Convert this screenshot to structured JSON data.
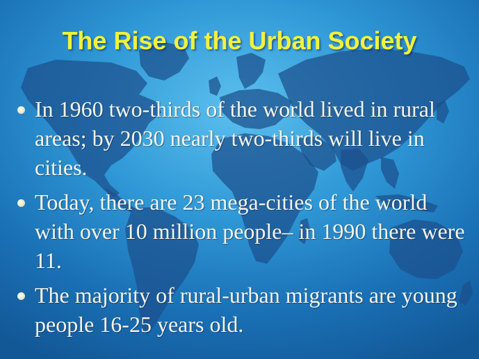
{
  "slide": {
    "title": "The Rise of the Urban Society",
    "background_map_icon": "world-map",
    "colors": {
      "title": "#f2f23a",
      "body_text": "#f5f5ea",
      "background": "#2f98d6",
      "map": "#1c4f8c"
    },
    "bullets": [
      {
        "text": "In 1960 two-thirds of the world lived in rural areas; by 2030 nearly two-thirds will live in cities."
      },
      {
        "text": "Today, there are 23 mega-cities of the world with over 10 million people– in 1990 there were 11."
      },
      {
        "text": "The majority of rural-urban migrants are young people 16-25 years old."
      }
    ]
  }
}
